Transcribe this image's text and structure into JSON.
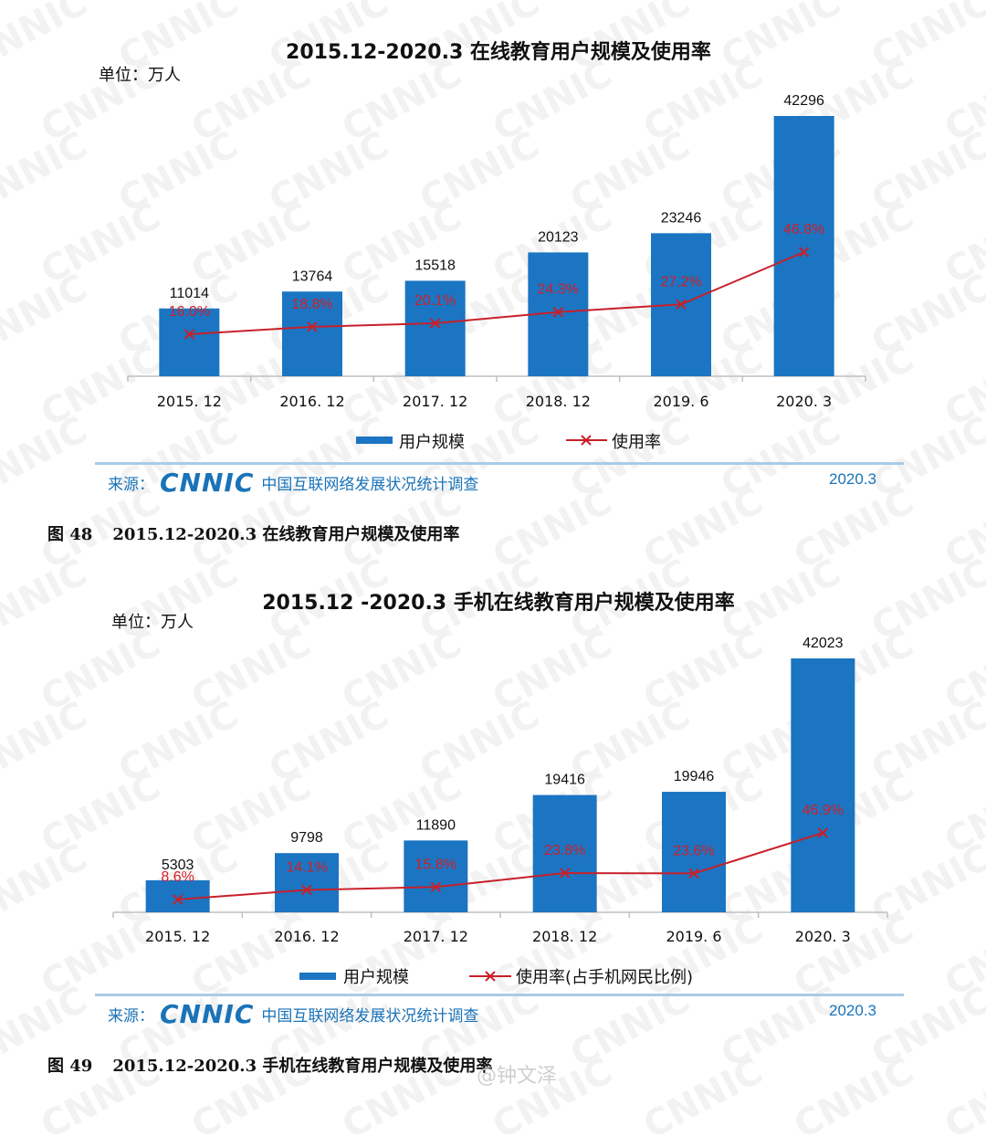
{
  "watermark": "CNNIC",
  "weibo_mark": "@钟文泽",
  "chart_data": [
    {
      "type": "bar",
      "title": "2015.12-2020.3 在线教育用户规模及使用率",
      "unit": "单位：万人",
      "categories": [
        "2015. 12",
        "2016. 12",
        "2017. 12",
        "2018. 12",
        "2019. 6",
        "2020. 3"
      ],
      "series": [
        {
          "name": "用户规模",
          "values": [
            11014,
            13764,
            15518,
            20123,
            23246,
            42296
          ],
          "color": "#1b75c2"
        },
        {
          "name": "使用率",
          "type": "line",
          "values": [
            16.0,
            18.8,
            20.1,
            24.3,
            27.2,
            46.8
          ],
          "labels": [
            "16.0%",
            "18.8%",
            "20.1%",
            "24.3%",
            "27.2%",
            "46.8%"
          ],
          "color": "#c8202a"
        }
      ],
      "source_prefix": "来源：",
      "source_logo": "CNNIC",
      "source_name": "中国互联网络发展状况统计调查",
      "source_date": "2020.3",
      "caption_num": "图 48",
      "caption_text": "2015.12-2020.3 在线教育用户规模及使用率"
    },
    {
      "type": "bar",
      "title": "2015.12 -2020.3 手机在线教育用户规模及使用率",
      "unit": "单位：万人",
      "categories": [
        "2015. 12",
        "2016. 12",
        "2017. 12",
        "2018. 12",
        "2019. 6",
        "2020. 3"
      ],
      "series": [
        {
          "name": "用户规模",
          "values": [
            5303,
            9798,
            11890,
            19416,
            19946,
            42023
          ],
          "color": "#1b75c2"
        },
        {
          "name": "使用率(占手机网民比例)",
          "type": "line",
          "values": [
            8.6,
            14.1,
            15.8,
            23.8,
            23.6,
            46.9
          ],
          "labels": [
            "8.6%",
            "14.1%",
            "15.8%",
            "23.8%",
            "23.6%",
            "46.9%"
          ],
          "color": "#c8202a"
        }
      ],
      "source_prefix": "来源：",
      "source_logo": "CNNIC",
      "source_name": "中国互联网络发展状况统计调查",
      "source_date": "2020.3",
      "caption_num": "图 49",
      "caption_text": "2015.12-2020.3 手机在线教育用户规模及使用率"
    }
  ]
}
